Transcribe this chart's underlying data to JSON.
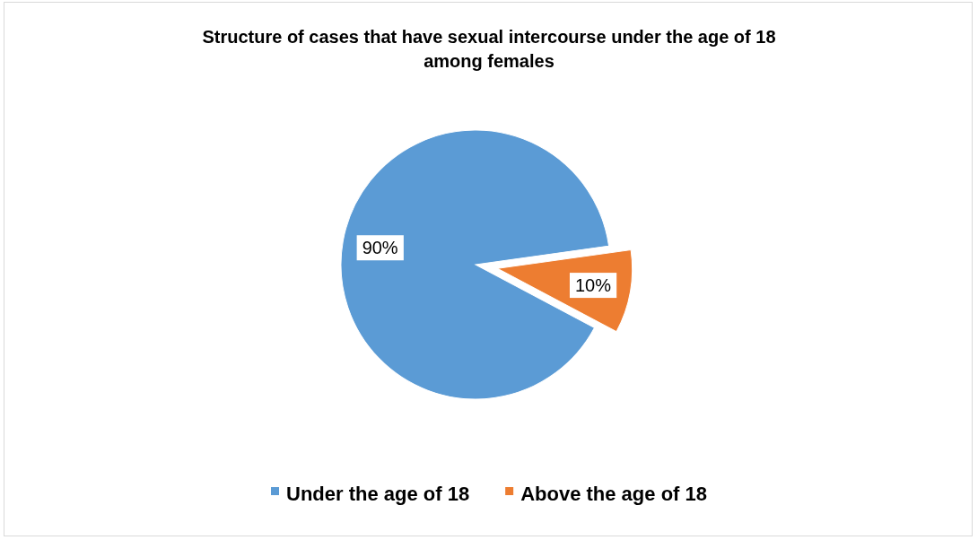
{
  "chart_data": {
    "type": "pie",
    "title": "Structure of cases that have sexual intercourse under the age of 18 among females",
    "categories": [
      "Under the age of 18",
      "Above the age of 18"
    ],
    "values": [
      90,
      10
    ],
    "colors": [
      "#5b9bd5",
      "#ed7d31"
    ],
    "value_labels": [
      "90%",
      "10%"
    ],
    "legend": "bottom"
  }
}
